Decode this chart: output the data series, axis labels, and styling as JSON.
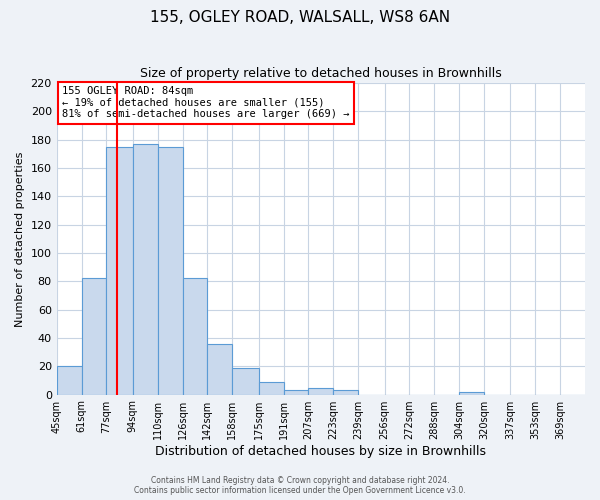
{
  "title": "155, OGLEY ROAD, WALSALL, WS8 6AN",
  "subtitle": "Size of property relative to detached houses in Brownhills",
  "xlabel": "Distribution of detached houses by size in Brownhills",
  "ylabel": "Number of detached properties",
  "bin_labels": [
    "45sqm",
    "61sqm",
    "77sqm",
    "94sqm",
    "110sqm",
    "126sqm",
    "142sqm",
    "158sqm",
    "175sqm",
    "191sqm",
    "207sqm",
    "223sqm",
    "239sqm",
    "256sqm",
    "272sqm",
    "288sqm",
    "304sqm",
    "320sqm",
    "337sqm",
    "353sqm",
    "369sqm"
  ],
  "bin_edges": [
    45,
    61,
    77,
    94,
    110,
    126,
    142,
    158,
    175,
    191,
    207,
    223,
    239,
    256,
    272,
    288,
    304,
    320,
    337,
    353,
    369,
    385
  ],
  "bar_heights": [
    20,
    82,
    175,
    177,
    175,
    82,
    36,
    19,
    9,
    3,
    5,
    3,
    0,
    0,
    0,
    0,
    2,
    0,
    0,
    0,
    0
  ],
  "ylim": [
    0,
    220
  ],
  "yticks": [
    0,
    20,
    40,
    60,
    80,
    100,
    120,
    140,
    160,
    180,
    200,
    220
  ],
  "bar_color": "#c9d9ed",
  "bar_edge_color": "#5b9bd5",
  "red_line_x": 84,
  "annotation_title": "155 OGLEY ROAD: 84sqm",
  "annotation_line1": "← 19% of detached houses are smaller (155)",
  "annotation_line2": "81% of semi-detached houses are larger (669) →",
  "footer1": "Contains HM Land Registry data © Crown copyright and database right 2024.",
  "footer2": "Contains public sector information licensed under the Open Government Licence v3.0.",
  "background_color": "#eef2f7",
  "plot_bg_color": "#ffffff",
  "grid_color": "#c8d4e3"
}
